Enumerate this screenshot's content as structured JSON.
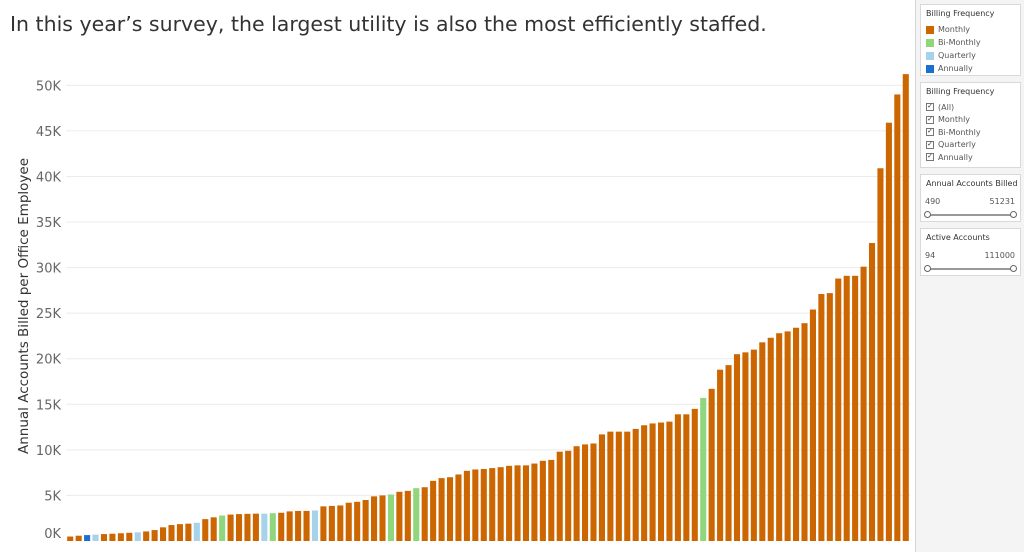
{
  "title": "In this year’s survey, the largest utility is also the most efficiently staffed.",
  "colors": {
    "Monthly": "#cc6600",
    "Bi-Monthly": "#8fd67c",
    "Quarterly": "#a6d2ea",
    "Annually": "#1a6fd1"
  },
  "legend": {
    "title": "Billing Frequency",
    "items": [
      {
        "label": "Monthly",
        "color": "#cc6600"
      },
      {
        "label": "Bi-Monthly",
        "color": "#8fd67c"
      },
      {
        "label": "Quarterly",
        "color": "#a6d2ea"
      },
      {
        "label": "Annually",
        "color": "#1a6fd1"
      }
    ]
  },
  "filter": {
    "title": "Billing Frequency",
    "options": [
      {
        "label": "(All)",
        "checked": true
      },
      {
        "label": "Monthly",
        "checked": true
      },
      {
        "label": "Bi-Monthly",
        "checked": true
      },
      {
        "label": "Quarterly",
        "checked": true
      },
      {
        "label": "Annually",
        "checked": true
      }
    ]
  },
  "range_annual": {
    "title": "Annual Accounts Billed ...",
    "min": "490",
    "max": "51231"
  },
  "range_active": {
    "title": "Active Accounts",
    "min": "94",
    "max": "111000"
  },
  "chart_data": {
    "type": "bar",
    "title": "In this year’s survey, the largest utility is also the most efficiently staffed.",
    "xlabel": "",
    "ylabel": "Annual Accounts Billed per Office Employee",
    "ylim": [
      0,
      53000
    ],
    "yticks": [
      0,
      5000,
      10000,
      15000,
      20000,
      25000,
      30000,
      35000,
      40000,
      45000,
      50000
    ],
    "ytick_labels": [
      "0K",
      "5K",
      "10K",
      "15K",
      "20K",
      "25K",
      "30K",
      "35K",
      "40K",
      "45K",
      "50K"
    ],
    "grid": true,
    "legend": "right",
    "bars": [
      {
        "value": 490,
        "frequency": "Monthly"
      },
      {
        "value": 580,
        "frequency": "Monthly"
      },
      {
        "value": 650,
        "frequency": "Annually"
      },
      {
        "value": 700,
        "frequency": "Quarterly"
      },
      {
        "value": 760,
        "frequency": "Monthly"
      },
      {
        "value": 800,
        "frequency": "Monthly"
      },
      {
        "value": 850,
        "frequency": "Monthly"
      },
      {
        "value": 900,
        "frequency": "Monthly"
      },
      {
        "value": 950,
        "frequency": "Quarterly"
      },
      {
        "value": 1050,
        "frequency": "Monthly"
      },
      {
        "value": 1200,
        "frequency": "Monthly"
      },
      {
        "value": 1500,
        "frequency": "Monthly"
      },
      {
        "value": 1750,
        "frequency": "Monthly"
      },
      {
        "value": 1850,
        "frequency": "Monthly"
      },
      {
        "value": 1900,
        "frequency": "Monthly"
      },
      {
        "value": 2000,
        "frequency": "Quarterly"
      },
      {
        "value": 2400,
        "frequency": "Monthly"
      },
      {
        "value": 2600,
        "frequency": "Monthly"
      },
      {
        "value": 2800,
        "frequency": "Bi-Monthly"
      },
      {
        "value": 2900,
        "frequency": "Monthly"
      },
      {
        "value": 2950,
        "frequency": "Monthly"
      },
      {
        "value": 2980,
        "frequency": "Monthly"
      },
      {
        "value": 3000,
        "frequency": "Monthly"
      },
      {
        "value": 3000,
        "frequency": "Quarterly"
      },
      {
        "value": 3050,
        "frequency": "Bi-Monthly"
      },
      {
        "value": 3100,
        "frequency": "Monthly"
      },
      {
        "value": 3250,
        "frequency": "Monthly"
      },
      {
        "value": 3300,
        "frequency": "Monthly"
      },
      {
        "value": 3300,
        "frequency": "Monthly"
      },
      {
        "value": 3350,
        "frequency": "Quarterly"
      },
      {
        "value": 3800,
        "frequency": "Monthly"
      },
      {
        "value": 3850,
        "frequency": "Monthly"
      },
      {
        "value": 3900,
        "frequency": "Monthly"
      },
      {
        "value": 4200,
        "frequency": "Monthly"
      },
      {
        "value": 4300,
        "frequency": "Monthly"
      },
      {
        "value": 4500,
        "frequency": "Monthly"
      },
      {
        "value": 4900,
        "frequency": "Monthly"
      },
      {
        "value": 5000,
        "frequency": "Monthly"
      },
      {
        "value": 5100,
        "frequency": "Bi-Monthly"
      },
      {
        "value": 5400,
        "frequency": "Monthly"
      },
      {
        "value": 5500,
        "frequency": "Monthly"
      },
      {
        "value": 5800,
        "frequency": "Bi-Monthly"
      },
      {
        "value": 5900,
        "frequency": "Monthly"
      },
      {
        "value": 6600,
        "frequency": "Monthly"
      },
      {
        "value": 6900,
        "frequency": "Monthly"
      },
      {
        "value": 7000,
        "frequency": "Monthly"
      },
      {
        "value": 7300,
        "frequency": "Monthly"
      },
      {
        "value": 7700,
        "frequency": "Monthly"
      },
      {
        "value": 7850,
        "frequency": "Monthly"
      },
      {
        "value": 7900,
        "frequency": "Monthly"
      },
      {
        "value": 8000,
        "frequency": "Monthly"
      },
      {
        "value": 8100,
        "frequency": "Monthly"
      },
      {
        "value": 8250,
        "frequency": "Monthly"
      },
      {
        "value": 8300,
        "frequency": "Monthly"
      },
      {
        "value": 8300,
        "frequency": "Monthly"
      },
      {
        "value": 8500,
        "frequency": "Monthly"
      },
      {
        "value": 8800,
        "frequency": "Monthly"
      },
      {
        "value": 8900,
        "frequency": "Monthly"
      },
      {
        "value": 9800,
        "frequency": "Monthly"
      },
      {
        "value": 9900,
        "frequency": "Monthly"
      },
      {
        "value": 10400,
        "frequency": "Monthly"
      },
      {
        "value": 10600,
        "frequency": "Monthly"
      },
      {
        "value": 10700,
        "frequency": "Monthly"
      },
      {
        "value": 11700,
        "frequency": "Monthly"
      },
      {
        "value": 12000,
        "frequency": "Monthly"
      },
      {
        "value": 12000,
        "frequency": "Monthly"
      },
      {
        "value": 12000,
        "frequency": "Monthly"
      },
      {
        "value": 12300,
        "frequency": "Monthly"
      },
      {
        "value": 12700,
        "frequency": "Monthly"
      },
      {
        "value": 12900,
        "frequency": "Monthly"
      },
      {
        "value": 13000,
        "frequency": "Monthly"
      },
      {
        "value": 13100,
        "frequency": "Monthly"
      },
      {
        "value": 13900,
        "frequency": "Monthly"
      },
      {
        "value": 13900,
        "frequency": "Monthly"
      },
      {
        "value": 14500,
        "frequency": "Monthly"
      },
      {
        "value": 15700,
        "frequency": "Bi-Monthly"
      },
      {
        "value": 16700,
        "frequency": "Monthly"
      },
      {
        "value": 18800,
        "frequency": "Monthly"
      },
      {
        "value": 19300,
        "frequency": "Monthly"
      },
      {
        "value": 20500,
        "frequency": "Monthly"
      },
      {
        "value": 20700,
        "frequency": "Monthly"
      },
      {
        "value": 21000,
        "frequency": "Monthly"
      },
      {
        "value": 21800,
        "frequency": "Monthly"
      },
      {
        "value": 22300,
        "frequency": "Monthly"
      },
      {
        "value": 22800,
        "frequency": "Monthly"
      },
      {
        "value": 23000,
        "frequency": "Monthly"
      },
      {
        "value": 23400,
        "frequency": "Monthly"
      },
      {
        "value": 23900,
        "frequency": "Monthly"
      },
      {
        "value": 25400,
        "frequency": "Monthly"
      },
      {
        "value": 27100,
        "frequency": "Monthly"
      },
      {
        "value": 27200,
        "frequency": "Monthly"
      },
      {
        "value": 28800,
        "frequency": "Monthly"
      },
      {
        "value": 29100,
        "frequency": "Monthly"
      },
      {
        "value": 29100,
        "frequency": "Monthly"
      },
      {
        "value": 30100,
        "frequency": "Monthly"
      },
      {
        "value": 32700,
        "frequency": "Monthly"
      },
      {
        "value": 40900,
        "frequency": "Monthly"
      },
      {
        "value": 45900,
        "frequency": "Monthly"
      },
      {
        "value": 49000,
        "frequency": "Monthly"
      },
      {
        "value": 51231,
        "frequency": "Monthly"
      }
    ]
  }
}
